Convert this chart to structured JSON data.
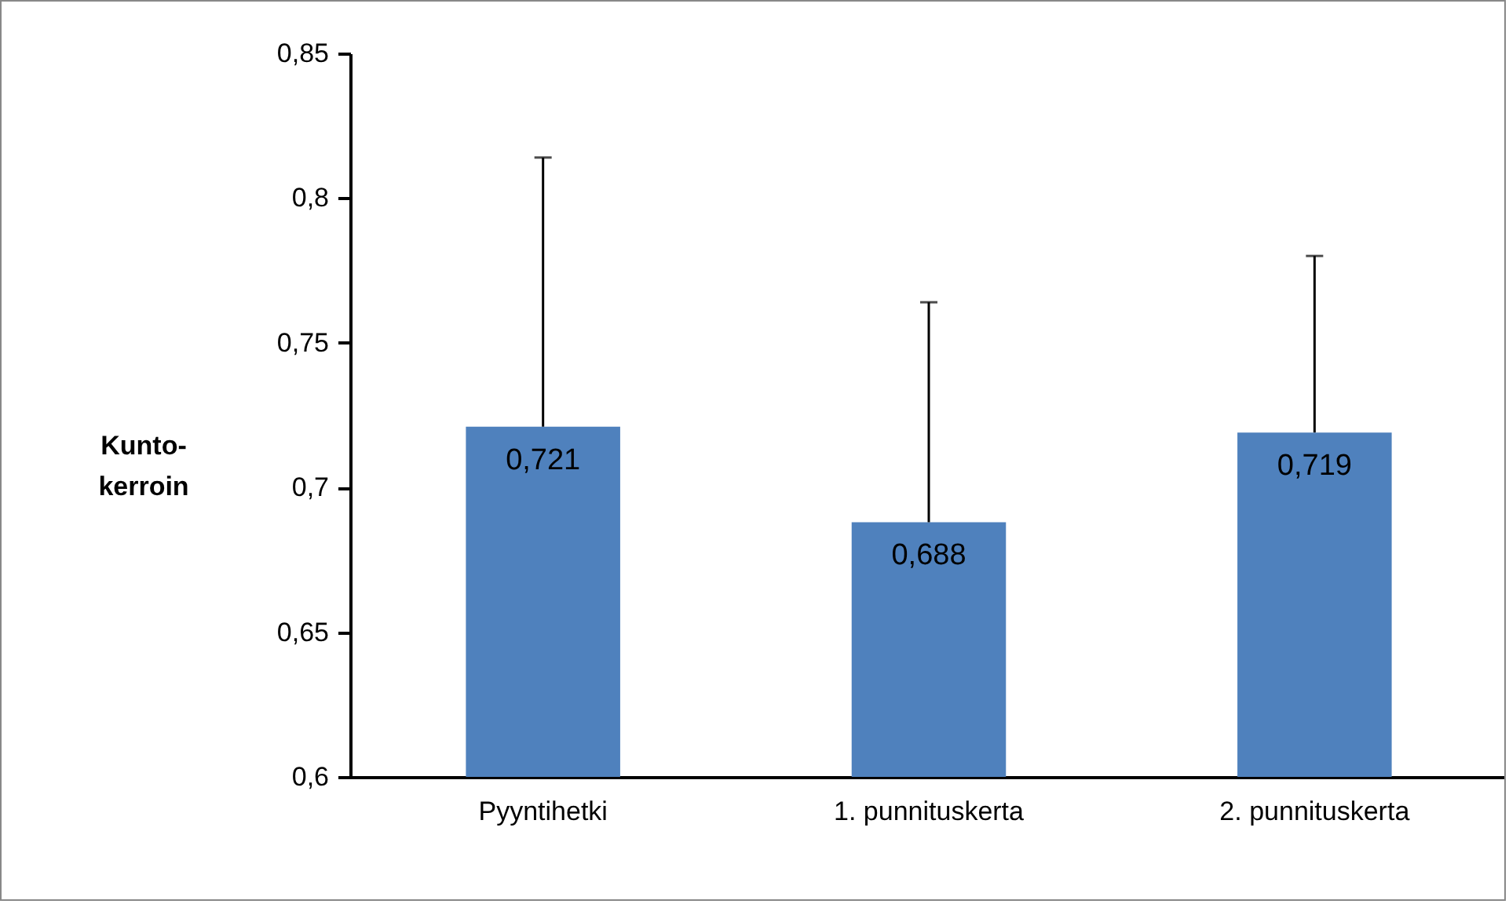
{
  "chart_data": {
    "type": "bar",
    "ylabel": "Kunto-\nkerroin",
    "categories": [
      "Pyyntihetki",
      "1. punnituskerta",
      "2. punnituskerta"
    ],
    "values": [
      0.721,
      0.688,
      0.719
    ],
    "color": "#4f81bd",
    "value_labels": [
      "0,721",
      "0,688",
      "0,719"
    ],
    "errors": [
      [
        0.721,
        0.814
      ],
      [
        0.688,
        0.764
      ],
      [
        0.719,
        0.78
      ]
    ],
    "ylim": [
      0.6,
      0.85
    ],
    "yticks": [
      {
        "value": 0.6,
        "label": "0,6"
      },
      {
        "value": 0.65,
        "label": "0,65"
      },
      {
        "value": 0.7,
        "label": "0,7"
      },
      {
        "value": 0.75,
        "label": "0,75"
      },
      {
        "value": 0.8,
        "label": "0,8"
      },
      {
        "value": 0.85,
        "label": "0,85"
      }
    ],
    "grid": false
  }
}
